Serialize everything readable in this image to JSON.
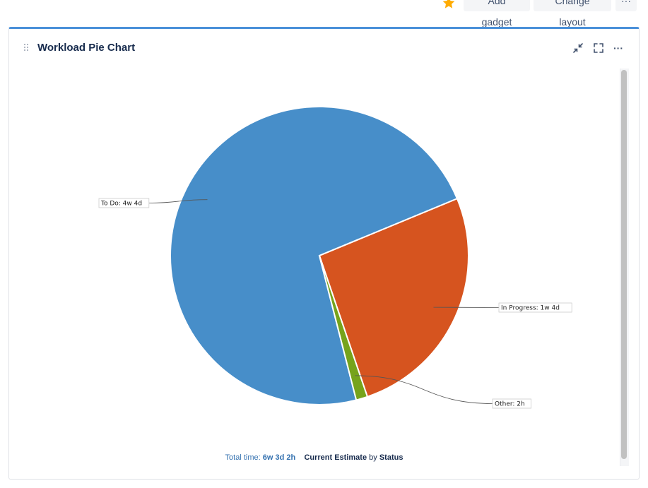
{
  "header": {
    "add_gadget_label": "Add gadget",
    "change_layout_label": "Change layout",
    "more_label": "···"
  },
  "gadget": {
    "title": "Workload Pie Chart",
    "more_label": "···",
    "accent_color": "#4a90d9"
  },
  "icons": {
    "star": "star-icon",
    "drag": "drag-handle-icon",
    "minimize": "minimize-icon",
    "maximize": "maximize-icon"
  },
  "chart_data": {
    "type": "pie",
    "title": "",
    "slices": [
      {
        "label": "To Do: 4w 4d",
        "value": 44,
        "color": "#478ec9"
      },
      {
        "label": "In Progress: 1w 4d",
        "value": 15.75,
        "color": "#d6541f"
      },
      {
        "label": "Other: 2h",
        "value": 0.75,
        "color": "#76a31b"
      }
    ]
  },
  "footer": {
    "total_label": "Total time:",
    "total_value": "6w 3d 2h",
    "field": "Current Estimate",
    "by": "by",
    "group": "Status"
  }
}
